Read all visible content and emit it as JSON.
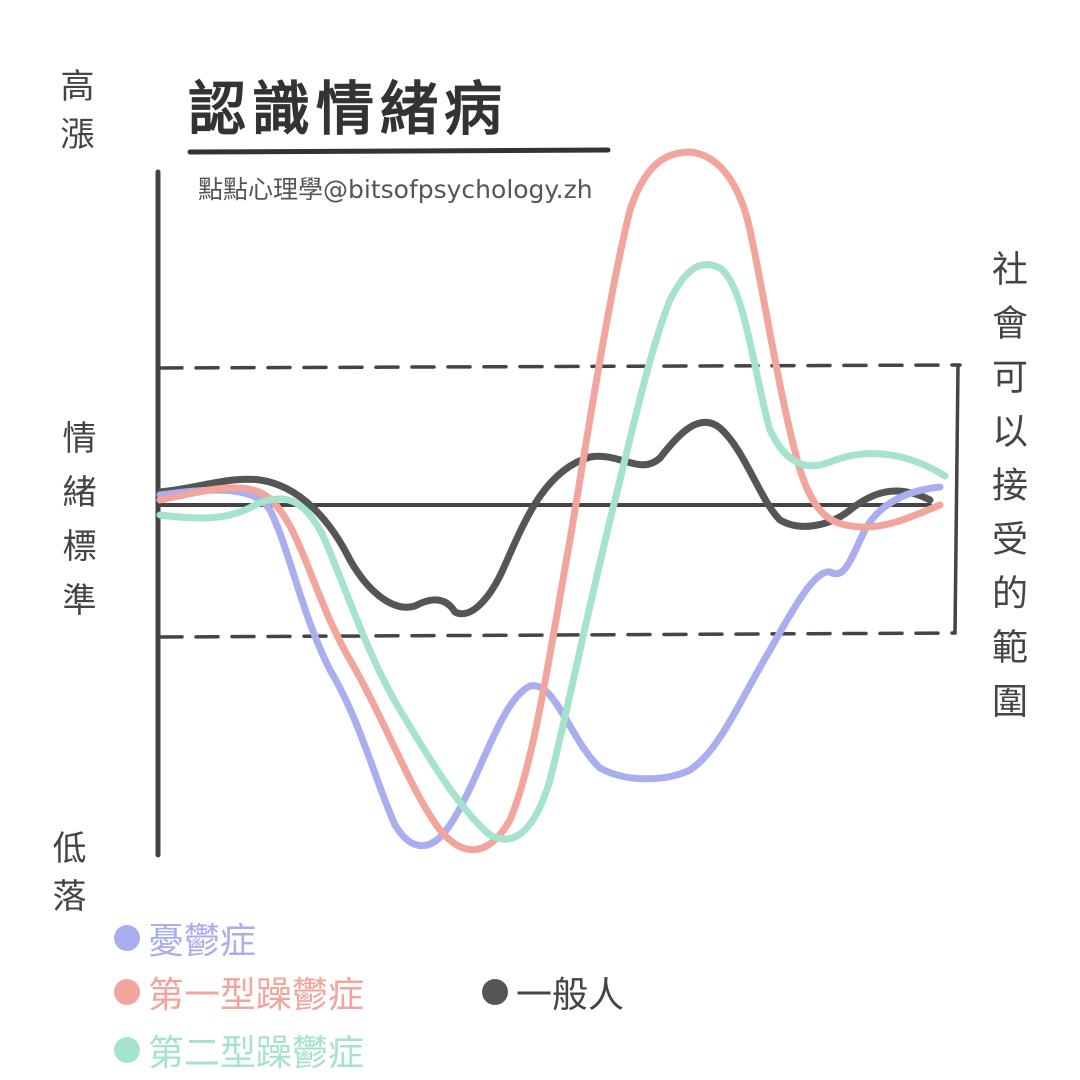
{
  "title": "認識情緒病",
  "subtitle": "點點心理學@bitsofpsychology.zh",
  "axis_labels": {
    "high": "高漲",
    "middle": "情緒標準",
    "low": "低落"
  },
  "range_label": "社會可以接受的範圍",
  "legend": [
    {
      "name": "憂鬱症",
      "color": "#a9aeee"
    },
    {
      "name": "第一型躁鬱症",
      "color": "#f2a59d"
    },
    {
      "name": "第二型躁鬱症",
      "color": "#a6e3cc"
    },
    {
      "name": "一般人",
      "color": "#555555"
    }
  ]
}
